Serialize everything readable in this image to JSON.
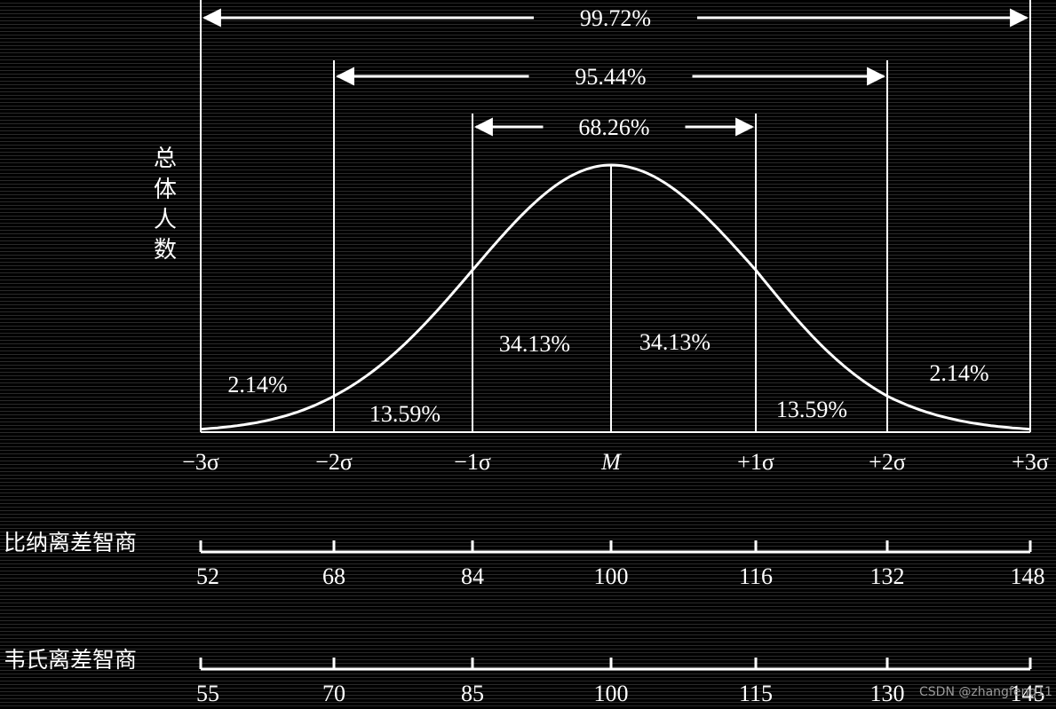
{
  "chart_data": {
    "type": "area",
    "title": "",
    "ylabel": "总体人数",
    "x_ticks": [
      "−3σ",
      "−2σ",
      "−1σ",
      "M",
      "+1σ",
      "+2σ",
      "+3σ"
    ],
    "x_values": [
      -3,
      -2,
      -1,
      0,
      1,
      2,
      3
    ],
    "region_percentages": [
      {
        "from": -3,
        "to": -2,
        "label": "2.14%"
      },
      {
        "from": -2,
        "to": -1,
        "label": "13.59%"
      },
      {
        "from": -1,
        "to": 0,
        "label": "34.13%"
      },
      {
        "from": 0,
        "to": 1,
        "label": "34.13%"
      },
      {
        "from": 1,
        "to": 2,
        "label": "13.59%"
      },
      {
        "from": 2,
        "to": 3,
        "label": "2.14%"
      }
    ],
    "ranges": [
      {
        "from": -3,
        "to": 3,
        "label": "99.72%"
      },
      {
        "from": -2,
        "to": 2,
        "label": "95.44%"
      },
      {
        "from": -1,
        "to": 1,
        "label": "68.26%"
      }
    ],
    "scales": [
      {
        "label": "比纳离差智商",
        "ticks": [
          "52",
          "68",
          "84",
          "100",
          "116",
          "132",
          "148"
        ]
      },
      {
        "label": "韦氏离差智商",
        "ticks": [
          "55",
          "70",
          "85",
          "100",
          "115",
          "130",
          "145"
        ]
      }
    ]
  },
  "watermark": "CSDN @zhangfeng11"
}
